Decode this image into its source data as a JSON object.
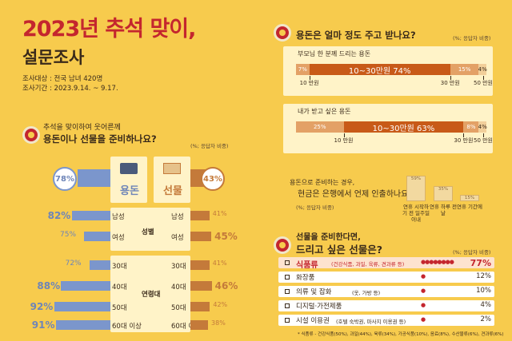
{
  "header": {
    "title": "2023년 추석 맞이,",
    "subtitle": "설문조사",
    "target": "조사대상 : 전국 남녀 420명",
    "period": "조사기간 : 2023.9.14. ~ 9.17."
  },
  "q1": {
    "line1": "추석을 맞이하여 웃어른께",
    "line2": "용돈이나 선물을 준비하나요?",
    "unit": "(%; 응답자 비중)"
  },
  "q2": {
    "title": "용돈은 얼마 정도 주고 받나요?",
    "unit": "(%; 응답자 비중)"
  },
  "q3": {
    "line1": "용돈으로 준비하는 경우,",
    "line2": "현금은 은행에서 언제 인출하나요?",
    "unit": "(%; 응답자 비중)"
  },
  "q4": {
    "line1": "선물을 준비한다면,",
    "line2": "드리고 싶은 선물은?",
    "unit": "(%; 응답자 비중)"
  },
  "footnote": "* 식품류 - 건강식품(50%), 과일(44%), 육류(34%), 가공식품(10%), 음료(8%), 수산물류(6%), 견과류(6%)",
  "colors": {
    "background": "#f7cb4d",
    "accent_red": "#c4262e",
    "money_blue": "#7b96cc",
    "gift_orange": "#c47a3a",
    "dark_orange": "#c85a18",
    "light_orange": "#e3a166"
  },
  "chart_data": [
    {
      "type": "bar",
      "orientation": "horizontal",
      "title": "추석을 맞이하여 웃어른께 용돈이나 선물을 준비하나요?",
      "unit": "(%; 응답자 비중)",
      "overall": {
        "money_label": "용돈",
        "gift_label": "선물",
        "money": 78,
        "gift": 43
      },
      "groups": [
        {
          "name": "성별",
          "categories": [
            "남성",
            "여성"
          ],
          "money": [
            82,
            75
          ],
          "gift": [
            41,
            45
          ]
        },
        {
          "name": "연령대",
          "categories": [
            "30대",
            "40대",
            "50대",
            "60대 이상"
          ],
          "money": [
            72,
            88,
            92,
            91
          ],
          "gift": [
            41,
            46,
            42,
            38
          ]
        }
      ]
    },
    {
      "type": "bar",
      "stacked": true,
      "title": "용돈은 얼마 정도 주고 받나요?",
      "unit": "(%; 응답자 비중)",
      "series": [
        {
          "name": "부모님 한 분께 드리는 용돈",
          "segments": [
            {
              "range": "<10만원",
              "value": 7
            },
            {
              "range": "10~30만원",
              "value": 74
            },
            {
              "range": "30~50만원",
              "value": 15
            },
            {
              "range": ">50만원",
              "value": 4
            }
          ]
        },
        {
          "name": "내가 받고 싶은 용돈",
          "segments": [
            {
              "range": "<10만원",
              "value": 25
            },
            {
              "range": "10~30만원",
              "value": 63
            },
            {
              "range": "30~50만원",
              "value": 8
            },
            {
              "range": ">50만원",
              "value": 4
            }
          ]
        }
      ],
      "ticks": [
        "10 만원",
        "30 만원",
        "50 만원"
      ],
      "mid_label": "10~30만원"
    },
    {
      "type": "bar",
      "title": "용돈으로 준비하는 경우, 현금은 은행에서 언제 인출하나요?",
      "unit": "(%; 응답자 비중)",
      "categories": [
        "연휴 시작하기 전 일주일 이내",
        "연휴 하루 전날",
        "연휴 기간에"
      ],
      "values": [
        59,
        35,
        15
      ],
      "value_labels": [
        "59%",
        "35%",
        "15%"
      ]
    },
    {
      "type": "bar",
      "title": "선물을 준비한다면, 드리고 싶은 선물은?",
      "unit": "(%; 응답자 비중)",
      "categories": [
        "식품류",
        "화장품",
        "의류 및 잡화",
        "디지털·가전제품",
        "시설 이용권"
      ],
      "details": [
        "(건강식품, 과일, 육류, 견과류 등)",
        "",
        "(옷, 가방 등)",
        "",
        "(호텔 숙박권, 마사지 이용권 등)"
      ],
      "values": [
        77,
        12,
        10,
        4,
        2
      ],
      "value_labels": [
        "77%",
        "12%",
        "10%",
        "4%",
        "2%"
      ]
    }
  ]
}
